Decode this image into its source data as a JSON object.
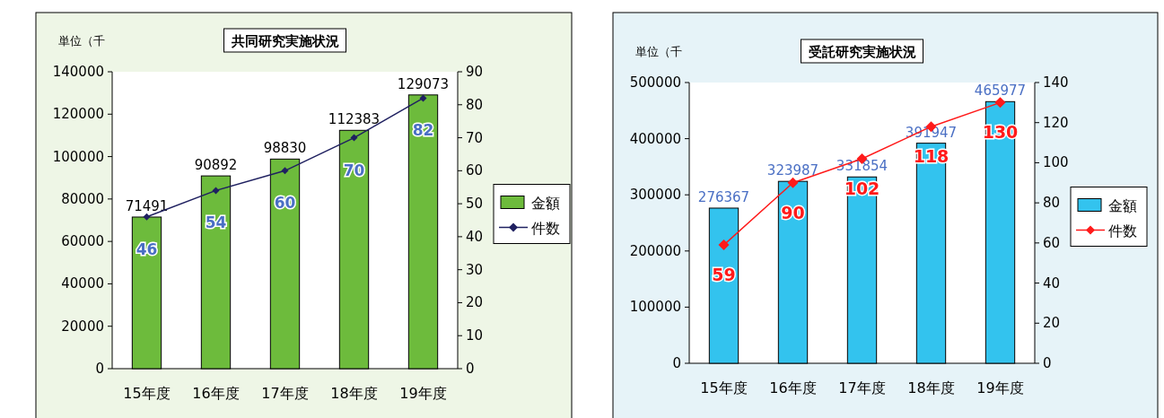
{
  "chart_data": [
    {
      "type": "bar",
      "title": "共同研究実施状況",
      "annotations": [
        "単位（千"
      ],
      "categories": [
        "15年度",
        "16年度",
        "17年度",
        "18年度",
        "19年度"
      ],
      "series": [
        {
          "name": "金額",
          "color": "#6dbb3c",
          "values": [
            71491,
            90892,
            98830,
            112383,
            129073
          ]
        },
        {
          "name": "件数",
          "type": "line",
          "axis": "y2",
          "color": "#1f2060",
          "marker": "diamond",
          "values": [
            46,
            54,
            60,
            70,
            82
          ]
        }
      ],
      "ylim": [
        0,
        140000
      ],
      "yticks": [
        0,
        20000,
        40000,
        60000,
        80000,
        100000,
        120000,
        140000
      ],
      "y2lim": [
        0,
        90
      ],
      "y2ticks": [
        0,
        10,
        20,
        30,
        40,
        50,
        60,
        70,
        80,
        90
      ],
      "data_labels": true,
      "legend": "right",
      "grid": false
    },
    {
      "type": "bar",
      "title": "受託研究実施状況",
      "annotations": [
        "単位（千"
      ],
      "categories": [
        "15年度",
        "16年度",
        "17年度",
        "18年度",
        "19年度"
      ],
      "series": [
        {
          "name": "金額",
          "color": "#33c3ee",
          "values": [
            276367,
            323987,
            331854,
            391947,
            465977
          ]
        },
        {
          "name": "件数",
          "type": "line",
          "axis": "y2",
          "color": "#ff1a1a",
          "marker": "diamond",
          "values": [
            59,
            90,
            102,
            118,
            130
          ]
        }
      ],
      "ylim": [
        0,
        500000
      ],
      "yticks": [
        0,
        100000,
        200000,
        300000,
        400000,
        500000
      ],
      "y2lim": [
        0,
        140
      ],
      "y2ticks": [
        0,
        20,
        40,
        60,
        80,
        100,
        120,
        140
      ],
      "data_labels": true,
      "legend": "right",
      "grid": false
    }
  ]
}
